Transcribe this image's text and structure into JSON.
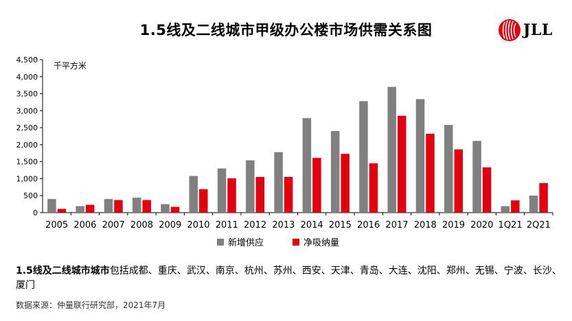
{
  "title": "1.5线及二线城市甲级办公楼市场供需关系图",
  "logo_text": "JLL",
  "colors": {
    "supply": "#808080",
    "absorption": "#e3000f",
    "logo_red": "#e3000f"
  },
  "chart_data": {
    "type": "bar",
    "unit_label": "千平方米",
    "categories": [
      "2005",
      "2006",
      "2007",
      "2008",
      "2009",
      "2010",
      "2011",
      "2012",
      "2013",
      "2014",
      "2015",
      "2016",
      "2017",
      "2018",
      "2019",
      "2020",
      "1Q21",
      "2Q21"
    ],
    "series": [
      {
        "name": "新增供应",
        "values": [
          400,
          190,
          400,
          440,
          250,
          1080,
          1300,
          1540,
          1780,
          2780,
          2400,
          3280,
          3700,
          3340,
          2580,
          2110,
          190,
          500
        ]
      },
      {
        "name": "净吸纳量",
        "values": [
          110,
          230,
          370,
          370,
          170,
          690,
          1010,
          1050,
          1050,
          1610,
          1730,
          1450,
          2850,
          2320,
          1860,
          1330,
          360,
          870
        ]
      }
    ],
    "ylim": [
      0,
      4500
    ],
    "yticks": [
      "0",
      "500",
      "1,000",
      "1,500",
      "2,000",
      "2,500",
      "3,000",
      "3,500",
      "4,000",
      "4,500"
    ],
    "grid": false,
    "legend_position": "bottom"
  },
  "notes": {
    "bold": "1.5线及二线城市城市",
    "rest": "包括成都、重庆、武汉、南京、杭州、苏州、西安、天津、青岛、大连、沈阳、郑州、无锡、宁波、长沙、厦门"
  },
  "source": "数据来源：仲量联行研究部，2021年7月"
}
